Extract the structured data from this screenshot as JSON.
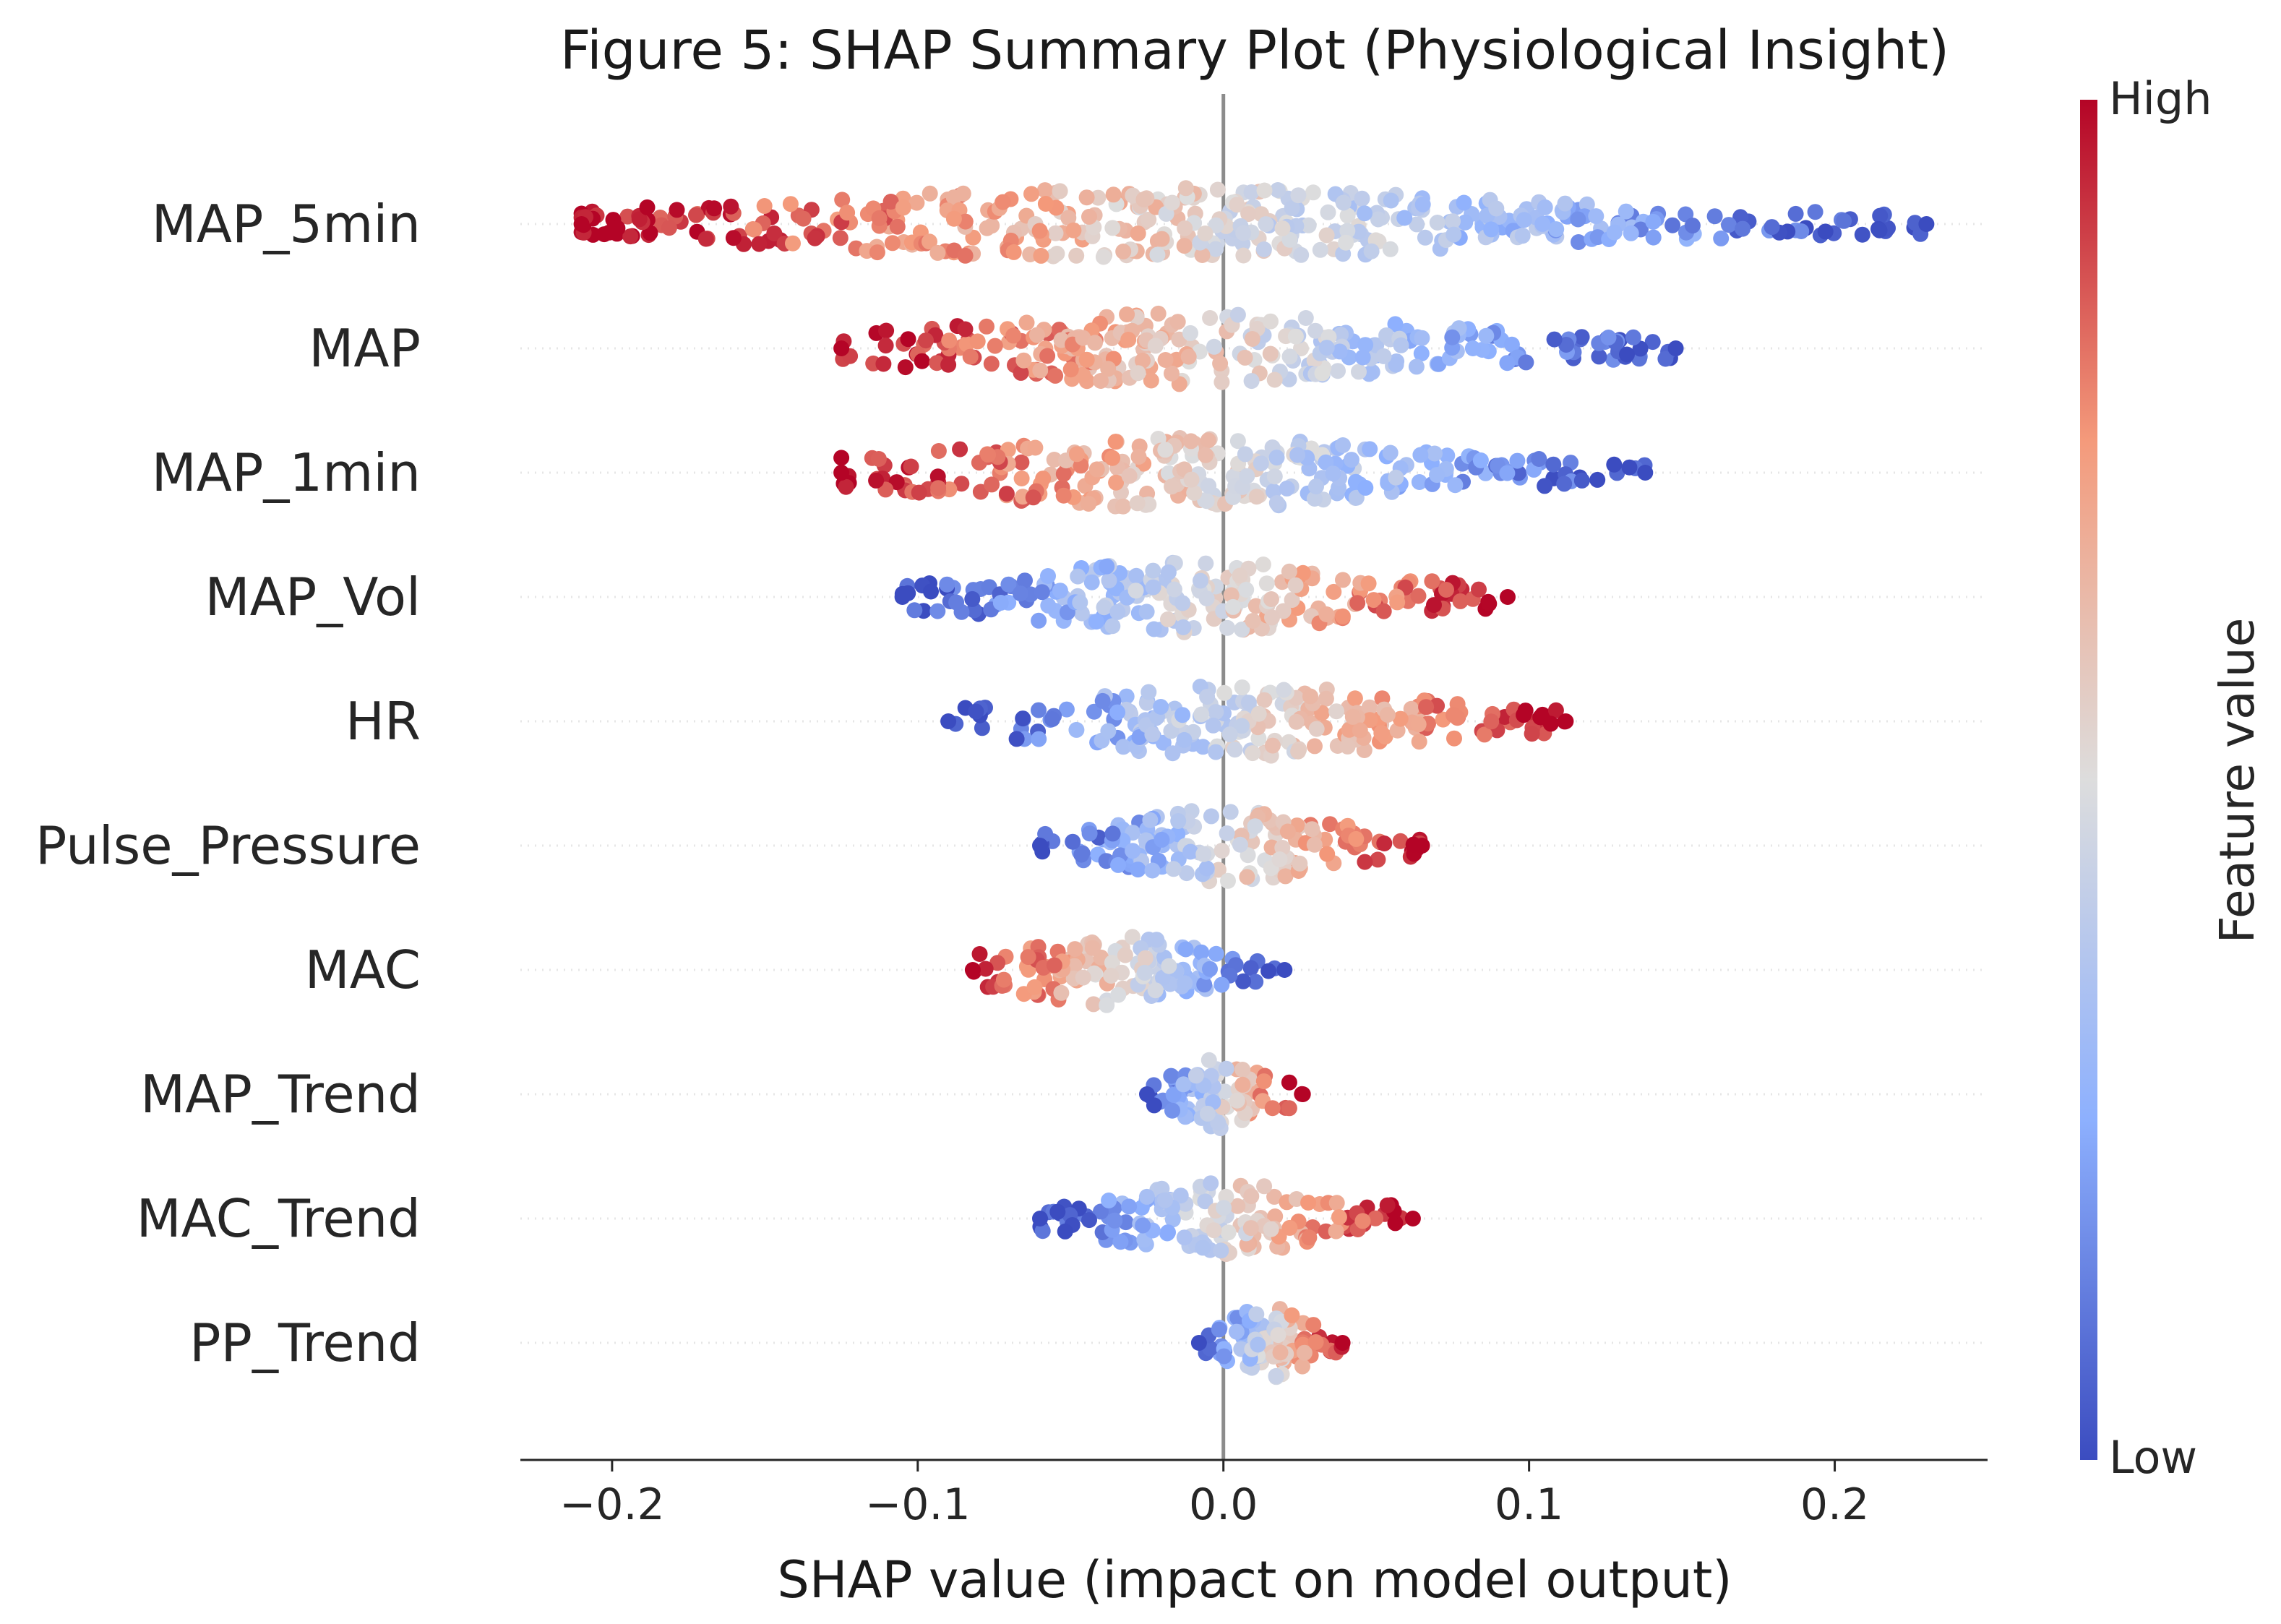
{
  "chart_data": {
    "type": "scatter",
    "subtype": "shap-beeswarm",
    "title": "Figure 5: SHAP Summary Plot (Physiological Insight)",
    "xlabel": "SHAP value (impact on model output)",
    "xlim": [
      -0.23,
      0.25
    ],
    "xticks": [
      -0.2,
      -0.1,
      0.0,
      0.1,
      0.2
    ],
    "xtick_labels": [
      "−0.2",
      "−0.1",
      "0.0",
      "0.1",
      "0.2"
    ],
    "features": [
      {
        "name": "MAP_5min",
        "min": -0.21,
        "max": 0.23,
        "high_side": "negative"
      },
      {
        "name": "MAP",
        "min": -0.125,
        "max": 0.148,
        "high_side": "negative"
      },
      {
        "name": "MAP_1min",
        "min": -0.125,
        "max": 0.138,
        "high_side": "negative"
      },
      {
        "name": "MAP_Vol",
        "min": -0.105,
        "max": 0.093,
        "high_side": "positive"
      },
      {
        "name": "HR",
        "min": -0.09,
        "max": 0.112,
        "high_side": "positive"
      },
      {
        "name": "Pulse_Pressure",
        "min": -0.06,
        "max": 0.065,
        "high_side": "positive"
      },
      {
        "name": "MAC",
        "min": -0.082,
        "max": 0.02,
        "high_side": "negative"
      },
      {
        "name": "MAP_Trend",
        "min": -0.025,
        "max": 0.026,
        "high_side": "positive"
      },
      {
        "name": "MAC_Trend",
        "min": -0.06,
        "max": 0.062,
        "high_side": "positive"
      },
      {
        "name": "PP_Trend",
        "min": -0.008,
        "max": 0.039,
        "high_side": "positive"
      }
    ],
    "colorbar": {
      "label": "Feature value",
      "high_label": "High",
      "low_label": "Low",
      "colormap": "coolwarm",
      "low_color": "#3b4cc0",
      "mid_color": "#dddddd",
      "high_color": "#b40426"
    },
    "zero_line_color": "#8c8c8c"
  }
}
